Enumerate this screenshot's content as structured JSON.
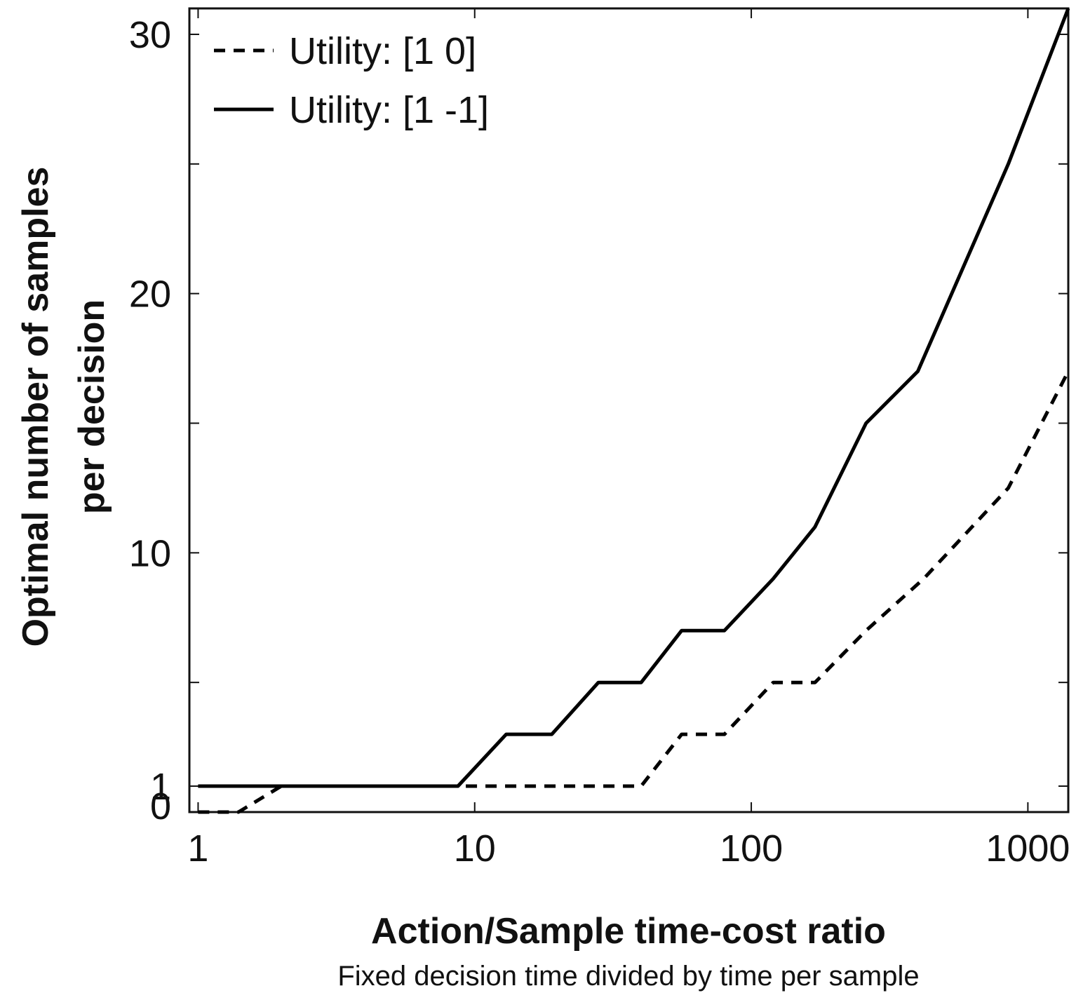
{
  "chart_data": {
    "type": "line",
    "xlabel": "Action/Sample time-cost ratio",
    "xsublabel": "Fixed decision time divided by time per sample",
    "ylabel": [
      "Optimal number of samples",
      "per decision"
    ],
    "xscale": "log",
    "xlim": [
      0.93,
      1400
    ],
    "ylim": [
      0,
      31
    ],
    "xticks": [
      1,
      10,
      100,
      1000
    ],
    "xtick_labels": [
      "1",
      "10",
      "100",
      "1000"
    ],
    "yticks": [
      0,
      1,
      10,
      20,
      30
    ],
    "ytick_labels": [
      "0",
      "1",
      "10",
      "20",
      "30"
    ],
    "minor_yticks": [
      5,
      15,
      25
    ],
    "grid": false,
    "legend_position": "top-left",
    "series": [
      {
        "name": "Utility: [1 0]",
        "style": "dashed",
        "color": "#000000",
        "x": [
          1.0,
          1.4,
          2.0,
          4.0,
          8.5,
          20,
          40,
          56,
          80,
          120,
          170,
          260,
          420,
          850,
          1400
        ],
        "y": [
          0,
          0,
          1,
          1,
          1,
          1,
          1,
          3,
          3,
          5,
          5,
          7,
          9,
          12.5,
          17
        ]
      },
      {
        "name": "Utility: [1 -1]",
        "style": "solid",
        "color": "#000000",
        "x": [
          1.0,
          2.0,
          4.0,
          8.7,
          13,
          19,
          28,
          40,
          56,
          80,
          120,
          170,
          260,
          400,
          850,
          1400
        ],
        "y": [
          1,
          1,
          1,
          1,
          3,
          3,
          5,
          5,
          7,
          7,
          9,
          11,
          15,
          17,
          25,
          31
        ]
      }
    ]
  }
}
